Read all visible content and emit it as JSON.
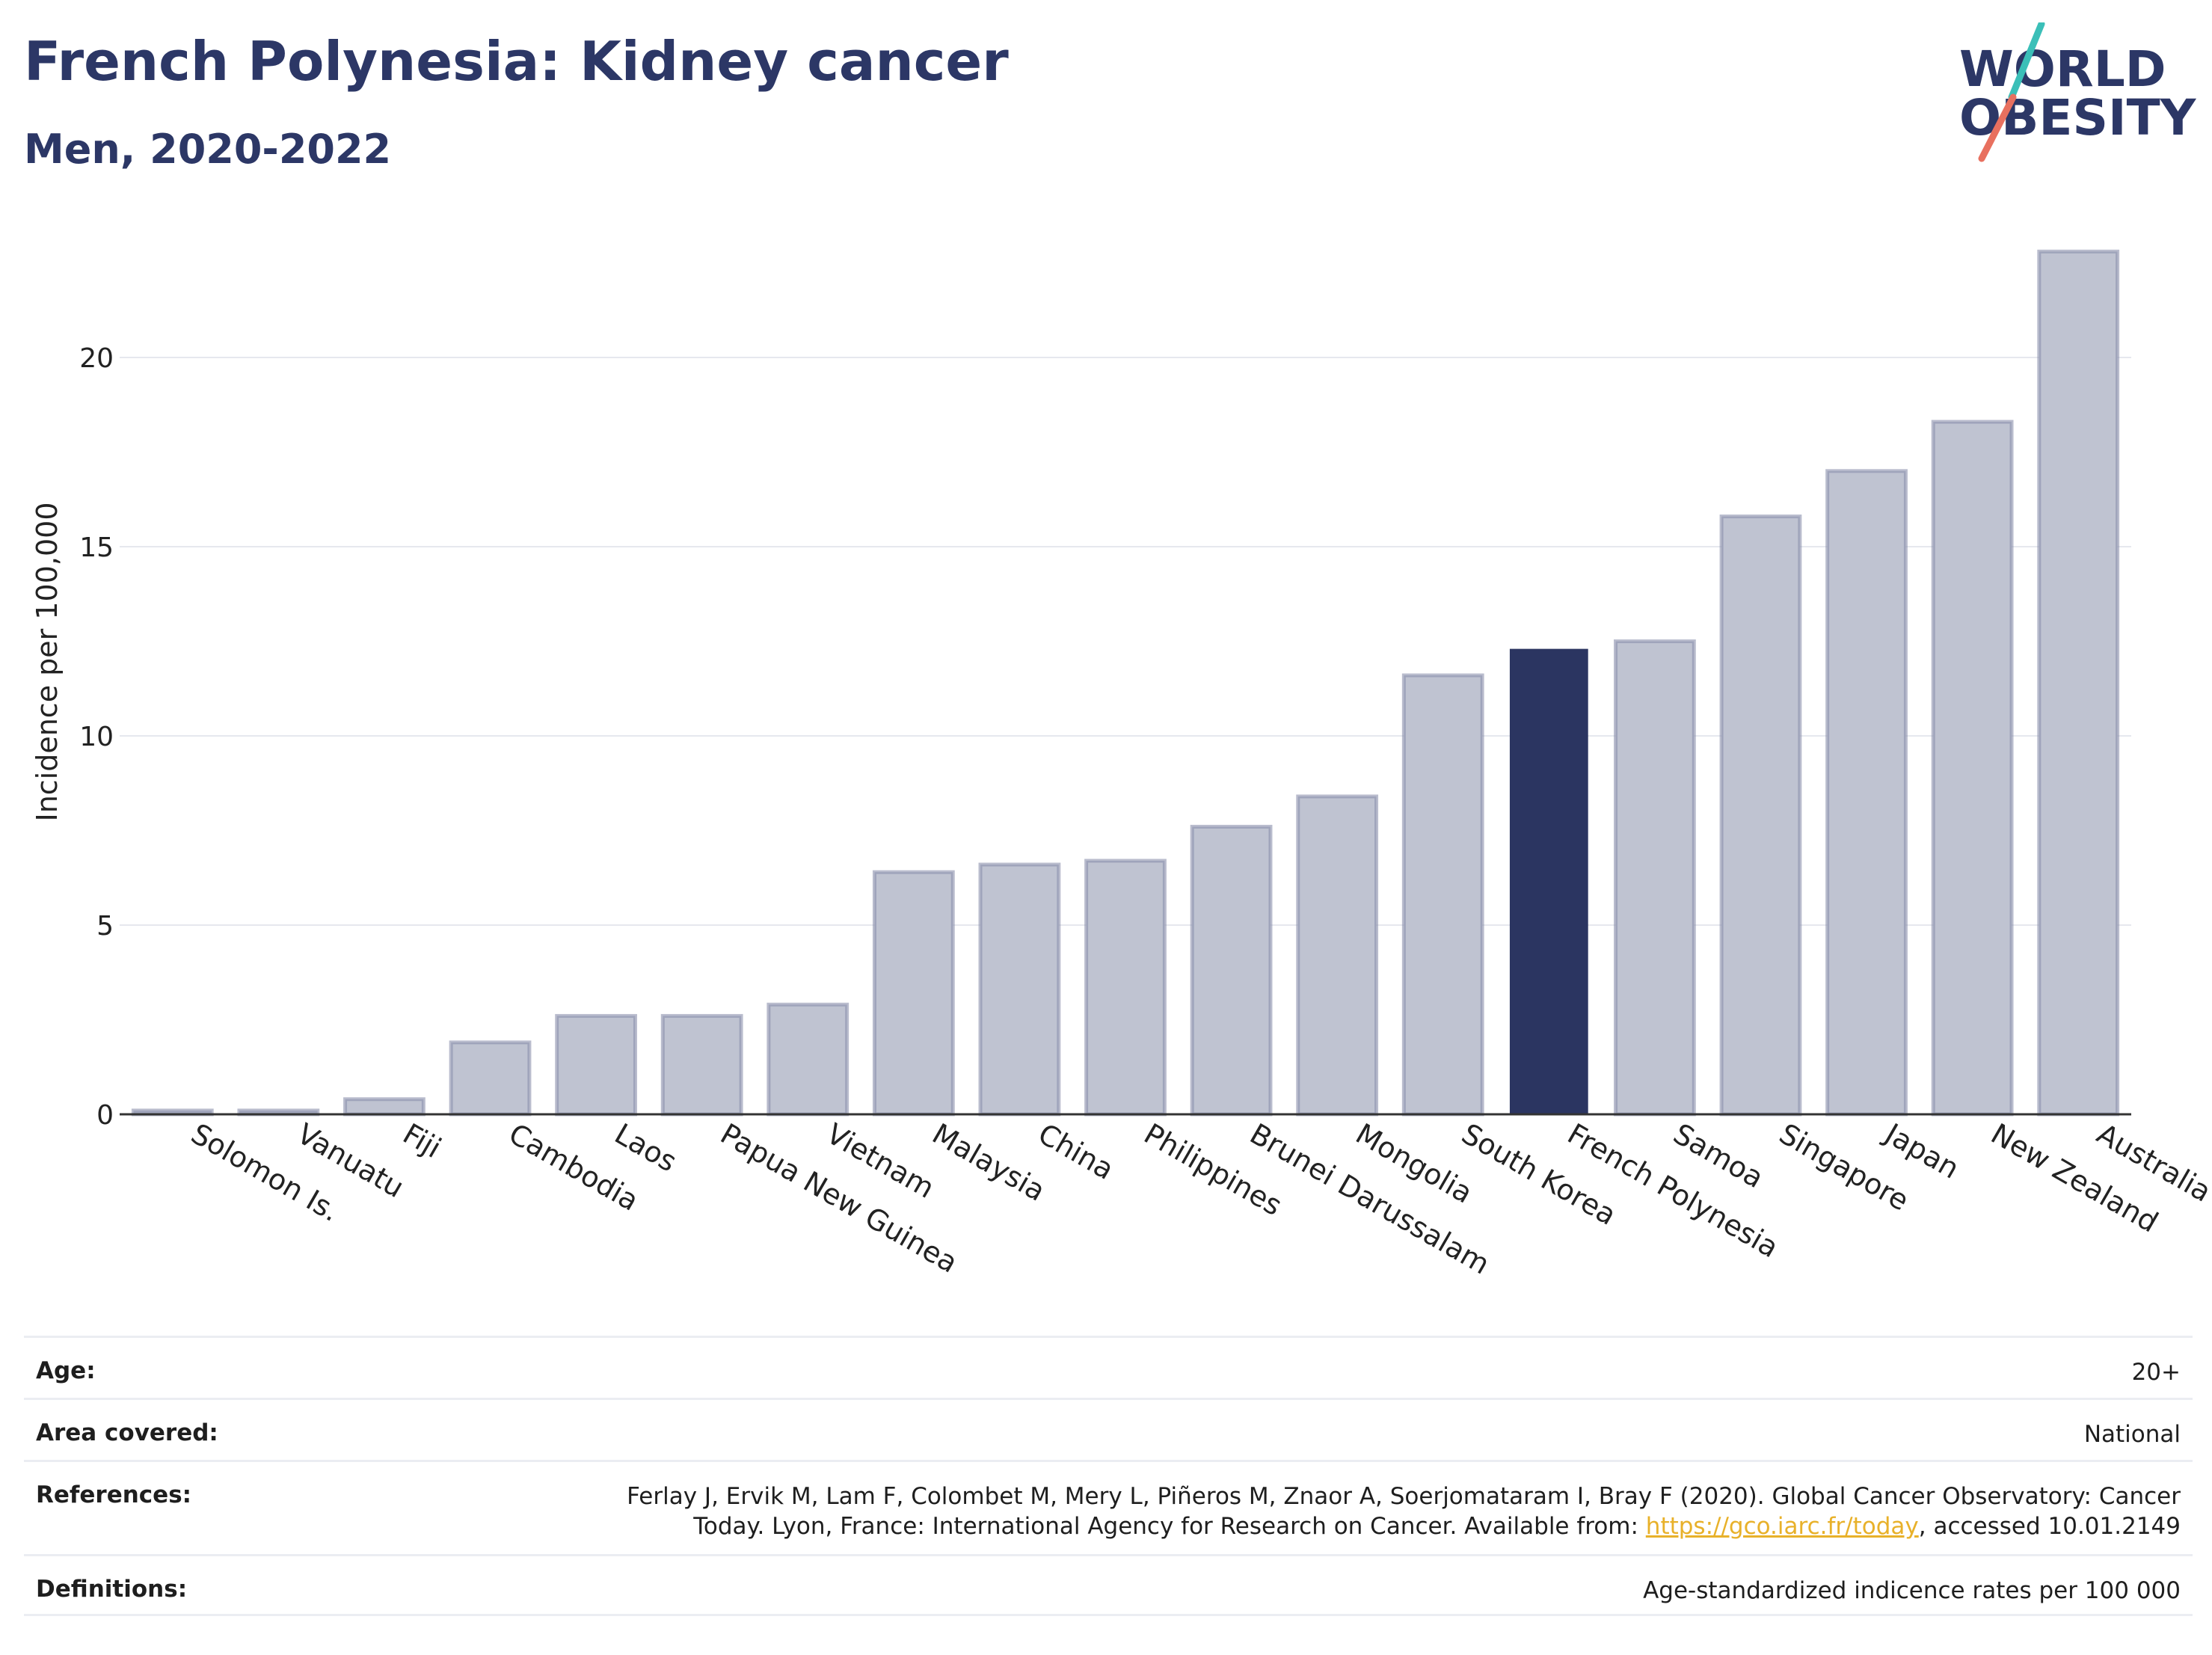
{
  "header": {
    "title": "French Polynesia: Kidney cancer",
    "subtitle": "Men, 2020-2022"
  },
  "logo": {
    "line1": "WORLD",
    "line2": "OBESITY",
    "accent_teal": "#3bbfb8",
    "accent_coral": "#e8705f"
  },
  "chart_data": {
    "type": "bar",
    "categories": [
      "Solomon Is.",
      "Vanuatu",
      "Fiji",
      "Cambodia",
      "Laos",
      "Papua New Guinea",
      "Vietnam",
      "Malaysia",
      "China",
      "Philippines",
      "Brunei Darussalam",
      "Mongolia",
      "South Korea",
      "French Polynesia",
      "Samoa",
      "Singapore",
      "Japan",
      "New Zealand",
      "Australia"
    ],
    "values": [
      0.1,
      0.1,
      0.4,
      1.9,
      2.6,
      2.6,
      2.9,
      6.4,
      6.6,
      6.7,
      7.6,
      8.4,
      11.6,
      12.3,
      12.5,
      15.8,
      17.0,
      18.3,
      22.8
    ],
    "highlight": "French Polynesia",
    "ylabel": "Incidence per 100,000",
    "xlabel": "",
    "ylim": [
      0,
      23.5
    ],
    "yticks": [
      0,
      5,
      10,
      15,
      20
    ],
    "grid": true,
    "colors": {
      "bar": "#bfc3d1",
      "bar_border": "#8a90ab",
      "highlight": "#2b3561",
      "grid": "#e6e8ee",
      "axis": "#333333"
    }
  },
  "info": {
    "age_label": "Age:",
    "age_value": "20+",
    "area_label": "Area covered:",
    "area_value": "National",
    "references_label": "References:",
    "references_text_1": "Ferlay J, Ervik M, Lam F, Colombet M, Mery L, Piñeros M, Znaor A, Soerjomataram I, Bray F (2020). Global Cancer Observatory: Cancer Today. Lyon, France: International Agency for Research on Cancer. Available from: ",
    "references_link": "https://gco.iarc.fr/today",
    "references_text_2": ", accessed 10.01.2149",
    "definitions_label": "Definitions:",
    "definitions_value": "Age-standardized indicence rates per 100 000"
  }
}
